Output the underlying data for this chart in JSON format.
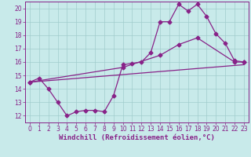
{
  "background_color": "#c8eaea",
  "grid_color": "#a0cccc",
  "line_color": "#882288",
  "xlabel": "Windchill (Refroidissement éolien,°C)",
  "xlim": [
    -0.5,
    23.5
  ],
  "ylim": [
    11.5,
    20.5
  ],
  "xticks": [
    0,
    1,
    2,
    3,
    4,
    5,
    6,
    7,
    8,
    9,
    10,
    11,
    12,
    13,
    14,
    15,
    16,
    17,
    18,
    19,
    20,
    21,
    22,
    23
  ],
  "yticks": [
    12,
    13,
    14,
    15,
    16,
    17,
    18,
    19,
    20
  ],
  "line1_x": [
    0,
    1,
    2,
    3,
    4,
    5,
    6,
    7,
    8,
    9,
    10,
    11,
    12,
    13,
    14,
    15,
    16,
    17,
    18,
    19,
    20,
    21,
    22,
    23
  ],
  "line1_y": [
    14.5,
    14.8,
    14.0,
    13.0,
    12.0,
    12.3,
    12.4,
    12.4,
    12.3,
    13.5,
    15.8,
    15.9,
    16.0,
    16.7,
    19.0,
    19.0,
    20.3,
    19.8,
    20.3,
    19.4,
    18.1,
    17.4,
    16.1,
    16.0
  ],
  "line2_x": [
    0,
    10,
    14,
    16,
    18,
    22,
    23
  ],
  "line2_y": [
    14.5,
    15.6,
    16.5,
    17.3,
    17.8,
    16.0,
    16.0
  ],
  "line3_x": [
    0,
    23
  ],
  "line3_y": [
    14.5,
    15.8
  ],
  "fontsize_tick": 5.5,
  "fontsize_label": 6.5
}
